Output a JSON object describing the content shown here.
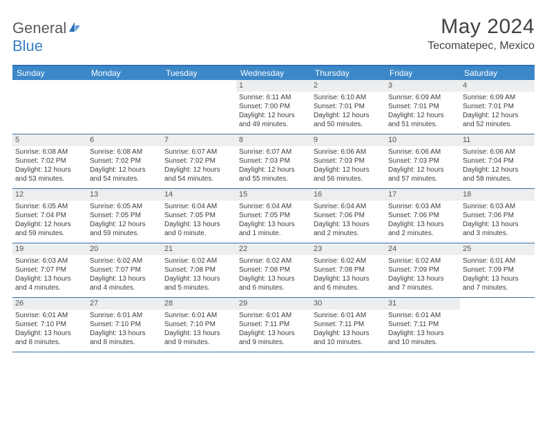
{
  "logo": {
    "word1": "General",
    "word2": "Blue"
  },
  "title": "May 2024",
  "location": "Tecomatepec, Mexico",
  "header_color": "#3b87c8",
  "rule_color": "#3b6fa0",
  "daynum_bg": "#eceeef",
  "days_of_week": [
    "Sunday",
    "Monday",
    "Tuesday",
    "Wednesday",
    "Thursday",
    "Friday",
    "Saturday"
  ],
  "weeks": [
    [
      {
        "n": "",
        "sr": "",
        "ss": "",
        "dl": ""
      },
      {
        "n": "",
        "sr": "",
        "ss": "",
        "dl": ""
      },
      {
        "n": "",
        "sr": "",
        "ss": "",
        "dl": ""
      },
      {
        "n": "1",
        "sr": "Sunrise: 6:11 AM",
        "ss": "Sunset: 7:00 PM",
        "dl": "Daylight: 12 hours and 49 minutes."
      },
      {
        "n": "2",
        "sr": "Sunrise: 6:10 AM",
        "ss": "Sunset: 7:01 PM",
        "dl": "Daylight: 12 hours and 50 minutes."
      },
      {
        "n": "3",
        "sr": "Sunrise: 6:09 AM",
        "ss": "Sunset: 7:01 PM",
        "dl": "Daylight: 12 hours and 51 minutes."
      },
      {
        "n": "4",
        "sr": "Sunrise: 6:09 AM",
        "ss": "Sunset: 7:01 PM",
        "dl": "Daylight: 12 hours and 52 minutes."
      }
    ],
    [
      {
        "n": "5",
        "sr": "Sunrise: 6:08 AM",
        "ss": "Sunset: 7:02 PM",
        "dl": "Daylight: 12 hours and 53 minutes."
      },
      {
        "n": "6",
        "sr": "Sunrise: 6:08 AM",
        "ss": "Sunset: 7:02 PM",
        "dl": "Daylight: 12 hours and 54 minutes."
      },
      {
        "n": "7",
        "sr": "Sunrise: 6:07 AM",
        "ss": "Sunset: 7:02 PM",
        "dl": "Daylight: 12 hours and 54 minutes."
      },
      {
        "n": "8",
        "sr": "Sunrise: 6:07 AM",
        "ss": "Sunset: 7:03 PM",
        "dl": "Daylight: 12 hours and 55 minutes."
      },
      {
        "n": "9",
        "sr": "Sunrise: 6:06 AM",
        "ss": "Sunset: 7:03 PM",
        "dl": "Daylight: 12 hours and 56 minutes."
      },
      {
        "n": "10",
        "sr": "Sunrise: 6:06 AM",
        "ss": "Sunset: 7:03 PM",
        "dl": "Daylight: 12 hours and 57 minutes."
      },
      {
        "n": "11",
        "sr": "Sunrise: 6:06 AM",
        "ss": "Sunset: 7:04 PM",
        "dl": "Daylight: 12 hours and 58 minutes."
      }
    ],
    [
      {
        "n": "12",
        "sr": "Sunrise: 6:05 AM",
        "ss": "Sunset: 7:04 PM",
        "dl": "Daylight: 12 hours and 59 minutes."
      },
      {
        "n": "13",
        "sr": "Sunrise: 6:05 AM",
        "ss": "Sunset: 7:05 PM",
        "dl": "Daylight: 12 hours and 59 minutes."
      },
      {
        "n": "14",
        "sr": "Sunrise: 6:04 AM",
        "ss": "Sunset: 7:05 PM",
        "dl": "Daylight: 13 hours and 0 minute."
      },
      {
        "n": "15",
        "sr": "Sunrise: 6:04 AM",
        "ss": "Sunset: 7:05 PM",
        "dl": "Daylight: 13 hours and 1 minute."
      },
      {
        "n": "16",
        "sr": "Sunrise: 6:04 AM",
        "ss": "Sunset: 7:06 PM",
        "dl": "Daylight: 13 hours and 2 minutes."
      },
      {
        "n": "17",
        "sr": "Sunrise: 6:03 AM",
        "ss": "Sunset: 7:06 PM",
        "dl": "Daylight: 13 hours and 2 minutes."
      },
      {
        "n": "18",
        "sr": "Sunrise: 6:03 AM",
        "ss": "Sunset: 7:06 PM",
        "dl": "Daylight: 13 hours and 3 minutes."
      }
    ],
    [
      {
        "n": "19",
        "sr": "Sunrise: 6:03 AM",
        "ss": "Sunset: 7:07 PM",
        "dl": "Daylight: 13 hours and 4 minutes."
      },
      {
        "n": "20",
        "sr": "Sunrise: 6:02 AM",
        "ss": "Sunset: 7:07 PM",
        "dl": "Daylight: 13 hours and 4 minutes."
      },
      {
        "n": "21",
        "sr": "Sunrise: 6:02 AM",
        "ss": "Sunset: 7:08 PM",
        "dl": "Daylight: 13 hours and 5 minutes."
      },
      {
        "n": "22",
        "sr": "Sunrise: 6:02 AM",
        "ss": "Sunset: 7:08 PM",
        "dl": "Daylight: 13 hours and 6 minutes."
      },
      {
        "n": "23",
        "sr": "Sunrise: 6:02 AM",
        "ss": "Sunset: 7:08 PM",
        "dl": "Daylight: 13 hours and 6 minutes."
      },
      {
        "n": "24",
        "sr": "Sunrise: 6:02 AM",
        "ss": "Sunset: 7:09 PM",
        "dl": "Daylight: 13 hours and 7 minutes."
      },
      {
        "n": "25",
        "sr": "Sunrise: 6:01 AM",
        "ss": "Sunset: 7:09 PM",
        "dl": "Daylight: 13 hours and 7 minutes."
      }
    ],
    [
      {
        "n": "26",
        "sr": "Sunrise: 6:01 AM",
        "ss": "Sunset: 7:10 PM",
        "dl": "Daylight: 13 hours and 8 minutes."
      },
      {
        "n": "27",
        "sr": "Sunrise: 6:01 AM",
        "ss": "Sunset: 7:10 PM",
        "dl": "Daylight: 13 hours and 8 minutes."
      },
      {
        "n": "28",
        "sr": "Sunrise: 6:01 AM",
        "ss": "Sunset: 7:10 PM",
        "dl": "Daylight: 13 hours and 9 minutes."
      },
      {
        "n": "29",
        "sr": "Sunrise: 6:01 AM",
        "ss": "Sunset: 7:11 PM",
        "dl": "Daylight: 13 hours and 9 minutes."
      },
      {
        "n": "30",
        "sr": "Sunrise: 6:01 AM",
        "ss": "Sunset: 7:11 PM",
        "dl": "Daylight: 13 hours and 10 minutes."
      },
      {
        "n": "31",
        "sr": "Sunrise: 6:01 AM",
        "ss": "Sunset: 7:11 PM",
        "dl": "Daylight: 13 hours and 10 minutes."
      },
      {
        "n": "",
        "sr": "",
        "ss": "",
        "dl": ""
      }
    ]
  ]
}
